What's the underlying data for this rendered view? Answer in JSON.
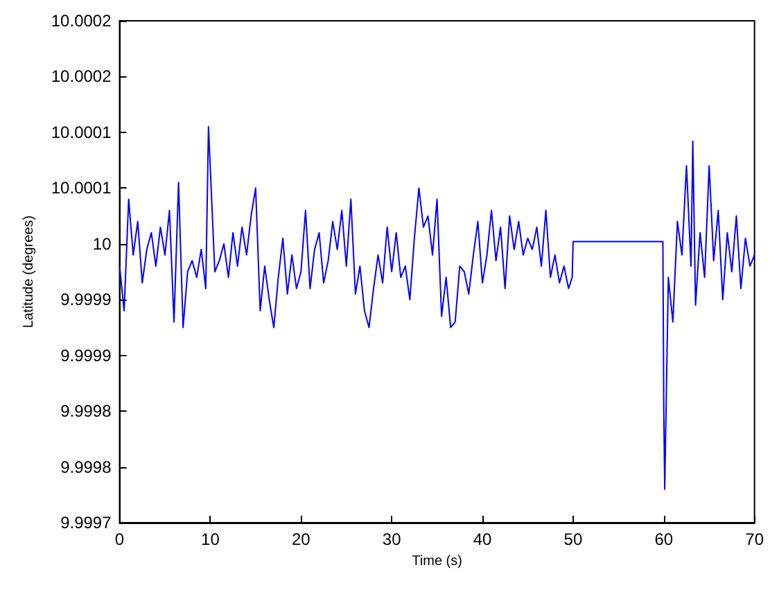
{
  "chart_data": {
    "type": "line",
    "xlabel": "Time (s)",
    "ylabel": "Latitude (degrees)",
    "x": [
      0,
      0.5,
      1,
      1.5,
      2,
      2.5,
      3,
      3.5,
      4,
      4.5,
      5,
      5.5,
      6,
      6.5,
      7,
      7.5,
      8,
      8.5,
      9,
      9.5,
      9.8,
      10.5,
      11,
      11.5,
      12,
      12.5,
      13,
      13.5,
      14,
      14.5,
      15,
      15.5,
      16,
      16.5,
      17,
      17.5,
      18,
      18.5,
      19,
      19.5,
      20,
      20.5,
      21,
      21.5,
      22,
      22.5,
      23,
      23.5,
      24,
      24.5,
      25,
      25.5,
      26,
      26.5,
      27,
      27.5,
      28,
      28.5,
      29,
      29.5,
      30,
      30.5,
      31,
      31.5,
      32,
      32.5,
      33,
      33.5,
      34,
      34.5,
      35,
      35.5,
      36,
      36.5,
      37,
      37.5,
      38,
      38.5,
      39,
      39.5,
      40,
      40.5,
      41,
      41.5,
      42,
      42.5,
      43,
      43.5,
      44,
      44.5,
      45,
      45.5,
      46,
      46.5,
      47,
      47.5,
      48,
      48.5,
      49,
      49.5,
      49.9,
      50,
      55,
      59.9,
      60,
      60.1,
      60.5,
      61,
      61.5,
      62,
      62.5,
      63,
      63.2,
      63.5,
      64,
      64.5,
      65,
      65.5,
      66,
      66.5,
      67,
      67.5,
      68,
      68.5,
      69,
      69.5,
      70
    ],
    "series": [
      {
        "color": "#0000ff",
        "values": [
          9.99998,
          9.99994,
          10.00004,
          9.99999,
          10.00002,
          9.999965,
          9.999995,
          10.00001,
          9.99998,
          10.000015,
          9.99999,
          10.00003,
          9.99993,
          10.000055,
          9.999925,
          9.999975,
          9.999985,
          9.99997,
          9.999995,
          9.99996,
          10.000105,
          9.999975,
          9.999985,
          10,
          9.99997,
          10.00001,
          9.99998,
          10.000015,
          9.99999,
          10.000025,
          10.00005,
          9.99994,
          9.99998,
          9.99995,
          9.999925,
          9.99997,
          10.000005,
          9.999955,
          9.99999,
          9.99996,
          9.999975,
          10.00003,
          9.99996,
          9.999995,
          10.00001,
          9.999965,
          9.999985,
          10.00002,
          9.999995,
          10.00003,
          9.99998,
          10.00004,
          9.999955,
          9.99998,
          9.99994,
          9.999925,
          9.99996,
          9.99999,
          9.999965,
          10.000015,
          9.999975,
          10.00001,
          9.99997,
          9.99998,
          9.99995,
          10.000005,
          10.00005,
          10.000015,
          10.000025,
          9.99999,
          10.00004,
          9.999935,
          9.99997,
          9.999925,
          9.99993,
          9.99998,
          9.999975,
          9.999955,
          9.99999,
          10.00002,
          9.999965,
          9.99999,
          10.00003,
          9.999985,
          10.000015,
          9.99996,
          10.000025,
          9.999995,
          10.00002,
          9.99999,
          10.000005,
          9.999995,
          10.000015,
          9.99998,
          10.00003,
          9.99997,
          9.99999,
          9.999965,
          9.99998,
          9.99996,
          9.99997,
          10.000002,
          10.000002,
          10.000002,
          9.99985,
          9.99978,
          9.99997,
          9.99993,
          10.00002,
          9.99999,
          10.00007,
          9.99998,
          10.000092,
          9.999945,
          10.00001,
          9.99997,
          10.00007,
          9.999985,
          10.00003,
          9.99995,
          10.00001,
          9.999975,
          10.000025,
          9.99996,
          10.000005,
          9.99998,
          9.99999
        ]
      }
    ],
    "xlim": [
      0,
      70
    ],
    "xticks": [
      0,
      10,
      20,
      30,
      40,
      50,
      60,
      70
    ],
    "ylim": [
      9.99975,
      10.0002
    ],
    "yticks": [
      {
        "value": 9.99975,
        "label": "9.9997"
      },
      {
        "value": 9.9998,
        "label": "9.9998"
      },
      {
        "value": 9.99985,
        "label": "9.9998"
      },
      {
        "value": 9.9999,
        "label": "9.9999"
      },
      {
        "value": 9.99995,
        "label": "9.9999"
      },
      10,
      {
        "value": 10.00005,
        "label": "10.0001"
      },
      {
        "value": 10.0001,
        "label": "10.0001"
      },
      {
        "value": 10.00015,
        "label": "10.0002"
      },
      {
        "value": 10.0002,
        "label": "10.0002"
      }
    ],
    "grid": false,
    "marker": "none",
    "line_style": "solid"
  }
}
